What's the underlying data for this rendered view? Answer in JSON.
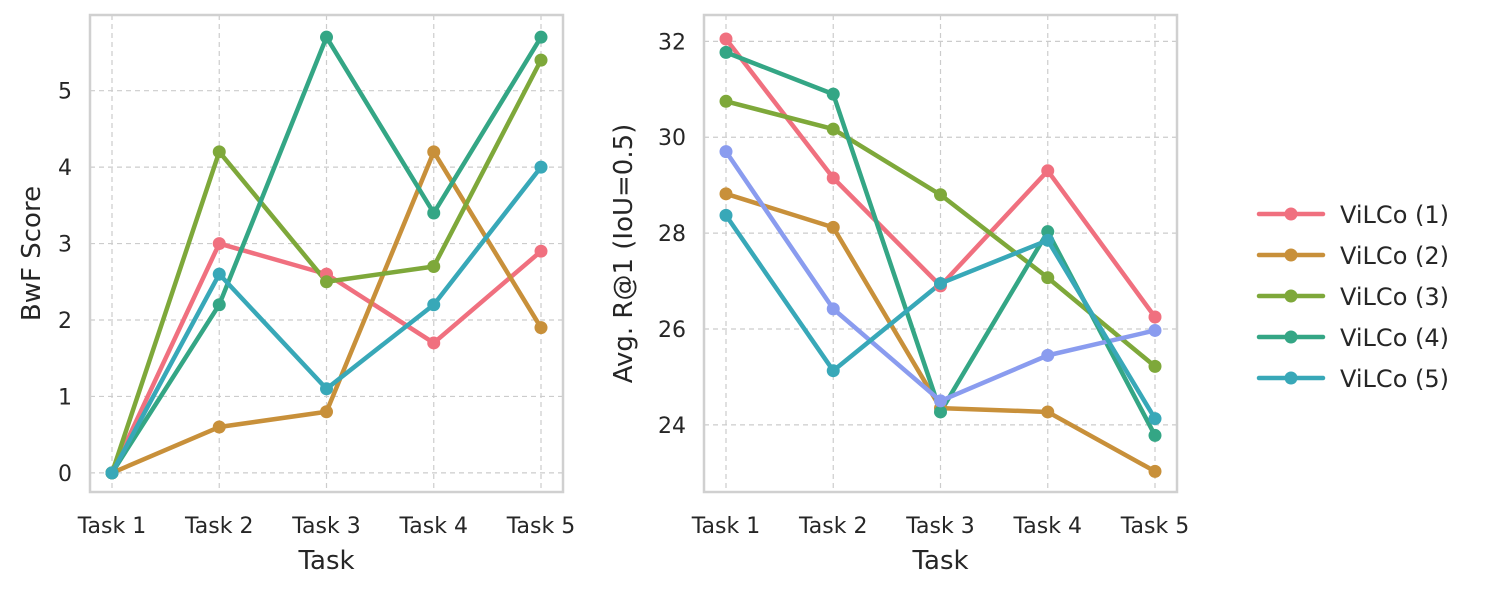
{
  "chart_data": [
    {
      "type": "line",
      "title": "",
      "xlabel": "Task",
      "ylabel": "BwF Score",
      "categories": [
        "Task 1",
        "Task 2",
        "Task 3",
        "Task 4",
        "Task 5"
      ],
      "ylim": [
        -0.25,
        5.99
      ],
      "yticks": [
        0,
        1,
        2,
        3,
        4,
        5
      ],
      "grid": true,
      "series": [
        {
          "name": "ViLCo (1)",
          "color": "#f0707f",
          "values": [
            0,
            3.0,
            2.6,
            1.7,
            2.9
          ]
        },
        {
          "name": "ViLCo (2)",
          "color": "#c8903a",
          "values": [
            0,
            0.6,
            0.8,
            4.2,
            1.9
          ]
        },
        {
          "name": "ViLCo (3)",
          "color": "#7ea83a",
          "values": [
            0,
            4.2,
            2.5,
            2.7,
            5.4
          ]
        },
        {
          "name": "ViLCo (4)",
          "color": "#34a685",
          "values": [
            0,
            2.2,
            5.7,
            3.4,
            5.7
          ]
        },
        {
          "name": "ViLCo (5)",
          "color": "#38a8b8",
          "values": [
            0,
            2.6,
            1.1,
            2.2,
            4.0
          ]
        }
      ]
    },
    {
      "type": "line",
      "title": "",
      "xlabel": "Task",
      "ylabel": "Avg. R@1 (IoU=0.5)",
      "categories": [
        "Task 1",
        "Task 2",
        "Task 3",
        "Task 4",
        "Task 5"
      ],
      "ylim": [
        22.6,
        32.55
      ],
      "yticks": [
        24,
        26,
        28,
        30,
        32
      ],
      "grid": true,
      "series": [
        {
          "name": "ViLCo (1)",
          "color": "#f0707f",
          "values": [
            32.05,
            29.15,
            26.9,
            29.3,
            26.25
          ]
        },
        {
          "name": "ViLCo (2)",
          "color": "#c8903a",
          "values": [
            28.82,
            28.12,
            24.35,
            24.27,
            23.03
          ]
        },
        {
          "name": "ViLCo (3)",
          "color": "#7ea83a",
          "values": [
            30.75,
            30.17,
            28.8,
            27.07,
            25.22
          ]
        },
        {
          "name": "ViLCo (4)",
          "color": "#34a685",
          "values": [
            31.77,
            30.9,
            24.27,
            28.03,
            23.78
          ]
        },
        {
          "name": "",
          "color": "#8a9cef",
          "values": [
            29.7,
            26.42,
            24.5,
            25.45,
            25.97
          ]
        },
        {
          "name": "ViLCo (5)",
          "color": "#38a8b8",
          "values": [
            28.37,
            25.13,
            26.95,
            27.85,
            24.13
          ]
        }
      ]
    }
  ],
  "legend": {
    "placement": "right",
    "entries": [
      {
        "label": "ViLCo (1)",
        "color": "#f0707f"
      },
      {
        "label": "ViLCo (2)",
        "color": "#c8903a"
      },
      {
        "label": "ViLCo (3)",
        "color": "#7ea83a"
      },
      {
        "label": "ViLCo (4)",
        "color": "#34a685"
      },
      {
        "label": "ViLCo (5)",
        "color": "#38a8b8"
      }
    ]
  }
}
